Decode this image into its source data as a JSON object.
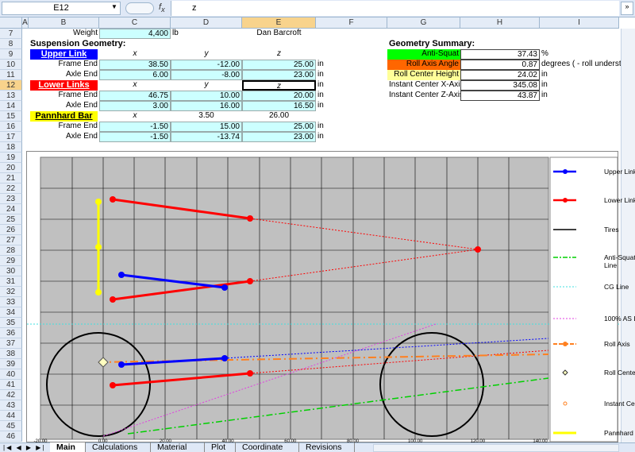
{
  "formula_bar": {
    "name_box": "E12",
    "formula": "z"
  },
  "columns": [
    "A",
    "B",
    "C",
    "D",
    "E",
    "F",
    "G",
    "H",
    "I"
  ],
  "rows": [
    {
      "number": 7,
      "cells": [
        null,
        "Weight",
        "4,400",
        "lb",
        "Dan Barcroft",
        null,
        null,
        null,
        null
      ]
    },
    {
      "number": 8,
      "cells": [
        null,
        "Suspension Geometry:",
        null,
        null,
        null,
        null,
        "Geometry Summary:",
        null,
        null
      ]
    },
    {
      "number": 9,
      "cells": [
        null,
        "Upper Link",
        "x",
        "y",
        "z",
        null,
        "Anti-Squat",
        "37.43",
        "%"
      ]
    },
    {
      "number": 10,
      "cells": [
        null,
        "Frame End",
        "38.50",
        "-12.00",
        "25.00",
        "in",
        "Roll Axis Angle",
        "0.87",
        "degrees ( - roll underst"
      ]
    },
    {
      "number": 11,
      "cells": [
        null,
        "Axle End",
        "6.00",
        "-8.00",
        "23.00",
        "in",
        "Roll Center Height",
        "24.02",
        "in"
      ]
    },
    {
      "number": 12,
      "cells": [
        null,
        "Lower Links",
        "x",
        "y",
        "z",
        "in",
        "Instant Center X-Axis",
        "345.08",
        "in"
      ]
    },
    {
      "number": 13,
      "cells": [
        null,
        "Frame End",
        "46.75",
        "10.00",
        "20.00",
        "in",
        "Instant Center Z-Axis",
        "43.87",
        "in"
      ]
    },
    {
      "number": 14,
      "cells": [
        null,
        "Axle End",
        "3.00",
        "16.00",
        "16.50",
        "in",
        null,
        null,
        null
      ]
    },
    {
      "number": 15,
      "cells": [
        null,
        "Pannhard Bar",
        "x",
        "3.50",
        "26.00",
        null,
        null,
        null,
        null
      ]
    },
    {
      "number": 16,
      "cells": [
        null,
        "Frame End",
        "-1.50",
        "15.00",
        "25.00",
        "in",
        null,
        null,
        null
      ]
    },
    {
      "number": 17,
      "cells": [
        null,
        "Axle End",
        "-1.50",
        "-13.74",
        "23.00",
        "in",
        null,
        null,
        null
      ]
    },
    {
      "number": 18
    },
    {
      "number": 19
    },
    {
      "number": 20
    },
    {
      "number": 21
    },
    {
      "number": 22
    },
    {
      "number": 23
    },
    {
      "number": 24
    },
    {
      "number": 25
    },
    {
      "number": 26
    },
    {
      "number": 27
    },
    {
      "number": 28
    },
    {
      "number": 29
    },
    {
      "number": 30
    },
    {
      "number": 31
    },
    {
      "number": 32
    },
    {
      "number": 33
    },
    {
      "number": 34
    },
    {
      "number": 35
    },
    {
      "number": 36
    },
    {
      "number": 37
    },
    {
      "number": 38
    },
    {
      "number": 39
    },
    {
      "number": 40
    },
    {
      "number": 41
    },
    {
      "number": 42
    },
    {
      "number": 43
    },
    {
      "number": 44
    },
    {
      "number": 45
    },
    {
      "number": 46
    }
  ],
  "chart": {
    "legend": [
      "Upper Link",
      "Lower Links",
      "Tires",
      "Anti-Squat Line",
      "CG Line",
      "100% AS Line",
      "Roll Axis",
      "Roll Center",
      "Instant Center",
      "Pannhard Bar"
    ],
    "x_axis_labels": [
      "-20.00",
      "0.00",
      "20.00",
      "40.00",
      "60.00",
      "80.00",
      "100.00",
      "120.00",
      "140.00"
    ]
  },
  "sheet_tabs": [
    "Main",
    "Calculations",
    "Material",
    "Plot",
    "Coordinate",
    "Revisions"
  ]
}
